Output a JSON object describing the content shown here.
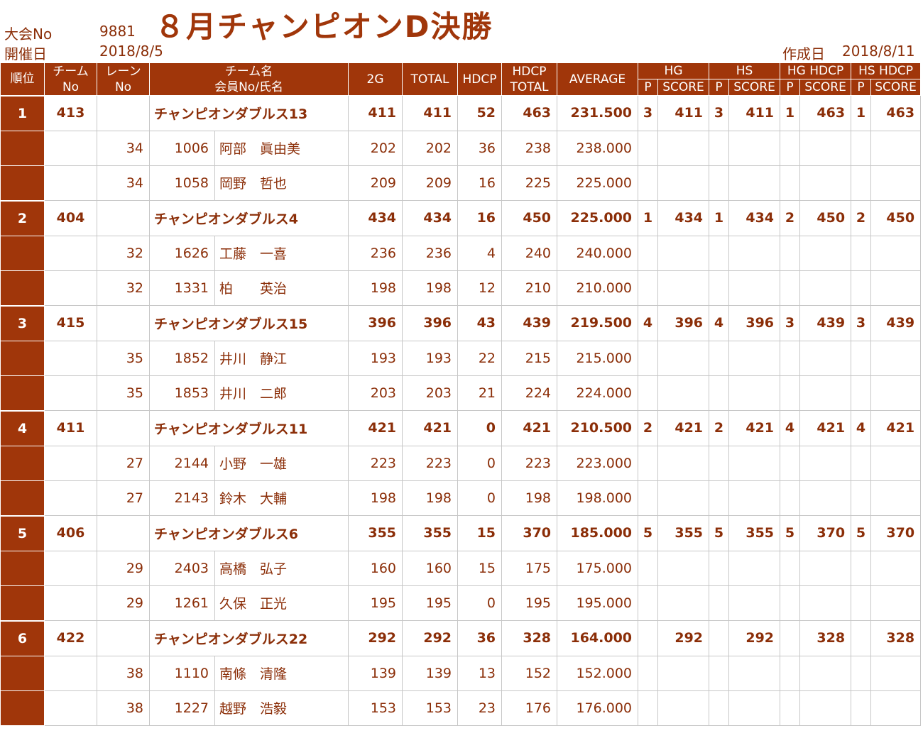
{
  "header": {
    "tournament_no_label": "大会No",
    "tournament_no": "9881",
    "date_label": "開催日",
    "date": "2018/8/5",
    "title": "８月チャンピオンD決勝",
    "created_label": "作成日",
    "created_date": "2018/8/11"
  },
  "columns": {
    "rank": "順位",
    "team_no_1": "チーム",
    "team_no_2": "No",
    "lane_1": "レーン",
    "lane_2": "No",
    "team_name_1": "チーム名",
    "team_name_2": "会員No/氏名",
    "g2": "2G",
    "total": "TOTAL",
    "hdcp": "HDCP",
    "hdcp_total_1": "HDCP",
    "hdcp_total_2": "TOTAL",
    "average": "AVERAGE",
    "hg": "HG",
    "hs": "HS",
    "hg_hdcp": "HG HDCP",
    "hs_hdcp": "HS HDCP",
    "p": "P",
    "score": "SCORE"
  },
  "teams": [
    {
      "rank": "1",
      "team_no": "413",
      "name": "チャンピオンダブルス13",
      "g2": "411",
      "total": "411",
      "hdcp": "52",
      "hdcp_total": "463",
      "average": "231.500",
      "hg_p": "3",
      "hg_score": "411",
      "hs_p": "3",
      "hs_score": "411",
      "hgh_p": "1",
      "hgh_score": "463",
      "hsh_p": "1",
      "hsh_score": "463",
      "members": [
        {
          "lane": "34",
          "member_no": "1006",
          "name": "阿部　眞由美",
          "g2": "202",
          "total": "202",
          "hdcp": "36",
          "hdcp_total": "238",
          "average": "238.000"
        },
        {
          "lane": "34",
          "member_no": "1058",
          "name": "岡野　哲也",
          "g2": "209",
          "total": "209",
          "hdcp": "16",
          "hdcp_total": "225",
          "average": "225.000"
        }
      ]
    },
    {
      "rank": "2",
      "team_no": "404",
      "name": "チャンピオンダブルス4",
      "g2": "434",
      "total": "434",
      "hdcp": "16",
      "hdcp_total": "450",
      "average": "225.000",
      "hg_p": "1",
      "hg_score": "434",
      "hs_p": "1",
      "hs_score": "434",
      "hgh_p": "2",
      "hgh_score": "450",
      "hsh_p": "2",
      "hsh_score": "450",
      "members": [
        {
          "lane": "32",
          "member_no": "1626",
          "name": "工藤　一喜",
          "g2": "236",
          "total": "236",
          "hdcp": "4",
          "hdcp_total": "240",
          "average": "240.000"
        },
        {
          "lane": "32",
          "member_no": "1331",
          "name": "柏　　英治",
          "g2": "198",
          "total": "198",
          "hdcp": "12",
          "hdcp_total": "210",
          "average": "210.000"
        }
      ]
    },
    {
      "rank": "3",
      "team_no": "415",
      "name": "チャンピオンダブルス15",
      "g2": "396",
      "total": "396",
      "hdcp": "43",
      "hdcp_total": "439",
      "average": "219.500",
      "hg_p": "4",
      "hg_score": "396",
      "hs_p": "4",
      "hs_score": "396",
      "hgh_p": "3",
      "hgh_score": "439",
      "hsh_p": "3",
      "hsh_score": "439",
      "members": [
        {
          "lane": "35",
          "member_no": "1852",
          "name": "井川　静江",
          "g2": "193",
          "total": "193",
          "hdcp": "22",
          "hdcp_total": "215",
          "average": "215.000"
        },
        {
          "lane": "35",
          "member_no": "1853",
          "name": "井川　二郎",
          "g2": "203",
          "total": "203",
          "hdcp": "21",
          "hdcp_total": "224",
          "average": "224.000"
        }
      ]
    },
    {
      "rank": "4",
      "team_no": "411",
      "name": "チャンピオンダブルス11",
      "g2": "421",
      "total": "421",
      "hdcp": "0",
      "hdcp_total": "421",
      "average": "210.500",
      "hg_p": "2",
      "hg_score": "421",
      "hs_p": "2",
      "hs_score": "421",
      "hgh_p": "4",
      "hgh_score": "421",
      "hsh_p": "4",
      "hsh_score": "421",
      "members": [
        {
          "lane": "27",
          "member_no": "2144",
          "name": "小野　一雄",
          "g2": "223",
          "total": "223",
          "hdcp": "0",
          "hdcp_total": "223",
          "average": "223.000"
        },
        {
          "lane": "27",
          "member_no": "2143",
          "name": "鈴木　大輔",
          "g2": "198",
          "total": "198",
          "hdcp": "0",
          "hdcp_total": "198",
          "average": "198.000"
        }
      ]
    },
    {
      "rank": "5",
      "team_no": "406",
      "name": "チャンピオンダブルス6",
      "g2": "355",
      "total": "355",
      "hdcp": "15",
      "hdcp_total": "370",
      "average": "185.000",
      "hg_p": "5",
      "hg_score": "355",
      "hs_p": "5",
      "hs_score": "355",
      "hgh_p": "5",
      "hgh_score": "370",
      "hsh_p": "5",
      "hsh_score": "370",
      "members": [
        {
          "lane": "29",
          "member_no": "2403",
          "name": "高橋　弘子",
          "g2": "160",
          "total": "160",
          "hdcp": "15",
          "hdcp_total": "175",
          "average": "175.000"
        },
        {
          "lane": "29",
          "member_no": "1261",
          "name": "久保　正光",
          "g2": "195",
          "total": "195",
          "hdcp": "0",
          "hdcp_total": "195",
          "average": "195.000"
        }
      ]
    },
    {
      "rank": "6",
      "team_no": "422",
      "name": "チャンピオンダブルス22",
      "g2": "292",
      "total": "292",
      "hdcp": "36",
      "hdcp_total": "328",
      "average": "164.000",
      "hg_p": "",
      "hg_score": "292",
      "hs_p": "",
      "hs_score": "292",
      "hgh_p": "",
      "hgh_score": "328",
      "hsh_p": "",
      "hsh_score": "328",
      "members": [
        {
          "lane": "38",
          "member_no": "1110",
          "name": "南條　清隆",
          "g2": "139",
          "total": "139",
          "hdcp": "13",
          "hdcp_total": "152",
          "average": "152.000"
        },
        {
          "lane": "38",
          "member_no": "1227",
          "name": "越野　浩毅",
          "g2": "153",
          "total": "153",
          "hdcp": "23",
          "hdcp_total": "176",
          "average": "176.000"
        }
      ]
    }
  ]
}
